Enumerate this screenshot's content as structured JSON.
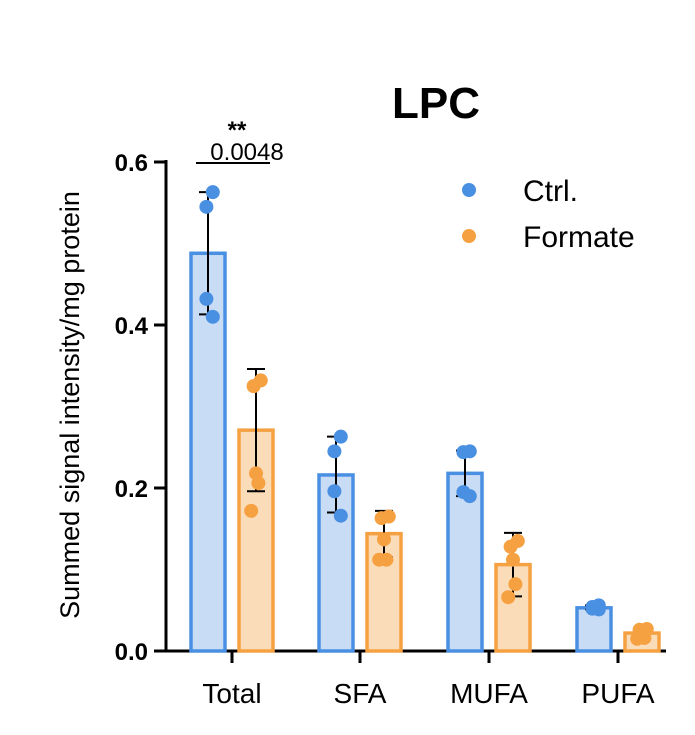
{
  "chart_data": {
    "type": "bar",
    "title": "LPC",
    "ylabel": "Summed signal intensity/mg protein",
    "xlabel": "",
    "ylim": [
      0,
      0.6
    ],
    "yticks": [
      "0.0",
      "0.2",
      "0.4",
      "0.6"
    ],
    "ytick_values": [
      0,
      0.2,
      0.4,
      0.6
    ],
    "categories": [
      "Total",
      "SFA",
      "MUFA",
      "PUFA"
    ],
    "grid": false,
    "legend_position": "top-right",
    "series": [
      {
        "name": "Ctrl.",
        "color": "#4a90e2",
        "fill": "#c9dcf5",
        "values": [
          0.488,
          0.216,
          0.218,
          0.053
        ],
        "error": [
          [
            0.413,
            0.563
          ],
          [
            0.17,
            0.263
          ],
          [
            0.19,
            0.246
          ],
          [
            0.051,
            0.056
          ]
        ],
        "points": [
          [
            0.563,
            0.545,
            0.432,
            0.41
          ],
          [
            0.263,
            0.245,
            0.196,
            0.166
          ],
          [
            0.245,
            0.244,
            0.195,
            0.19
          ],
          [
            0.056,
            0.054,
            0.052,
            0.051
          ]
        ]
      },
      {
        "name": "Formate",
        "color": "#f5a142",
        "fill": "#fbdcb8",
        "values": [
          0.271,
          0.144,
          0.106,
          0.022
        ],
        "error": [
          [
            0.196,
            0.346
          ],
          [
            0.115,
            0.172
          ],
          [
            0.067,
            0.145
          ],
          [
            0.015,
            0.028
          ]
        ],
        "points": [
          [
            0.332,
            0.325,
            0.218,
            0.206,
            0.172
          ],
          [
            0.165,
            0.163,
            0.137,
            0.112,
            0.112
          ],
          [
            0.135,
            0.128,
            0.112,
            0.082,
            0.066
          ],
          [
            0.027,
            0.026,
            0.02,
            0.016,
            0.015
          ]
        ]
      }
    ],
    "annotations": [
      {
        "category": "Total",
        "stars": "**",
        "p_value": "0.0048"
      }
    ]
  }
}
